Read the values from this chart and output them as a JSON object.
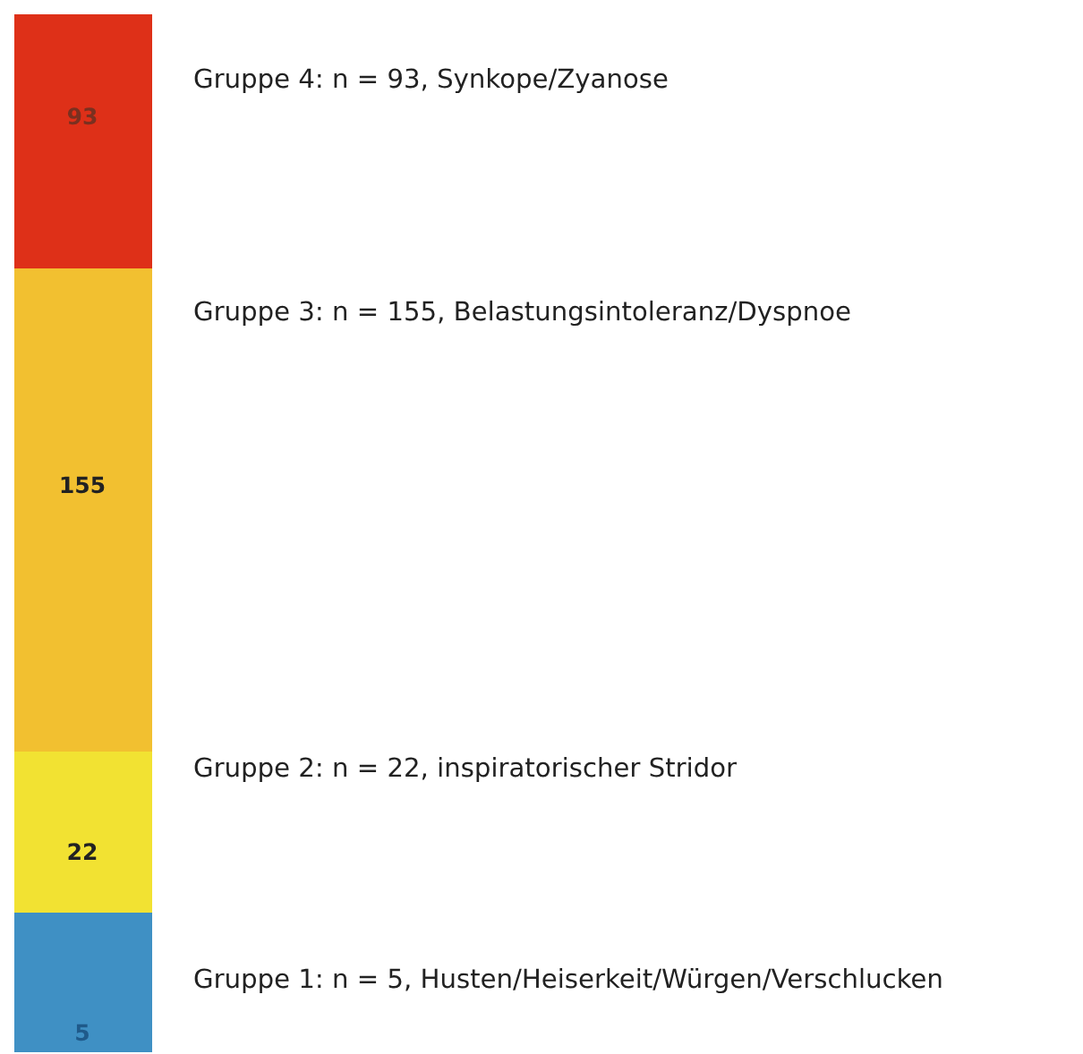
{
  "chart_data": {
    "type": "other",
    "categories": [
      "Gruppe 1: n = 5, Husten/Heiserkeit/Würgen/Verschlucken",
      "Gruppe 2: n = 22, inspiratorischer Stridor",
      "Gruppe 3: n = 155, Belastungsintoleranz/Dyspnoe",
      "Gruppe 4: n = 93, Synkope/Zyanose"
    ],
    "values": [
      5,
      22,
      155,
      93
    ],
    "colors": [
      "#3f90c4",
      "#f2e232",
      "#f2c030",
      "#de3018"
    ],
    "data_labels": true
  }
}
